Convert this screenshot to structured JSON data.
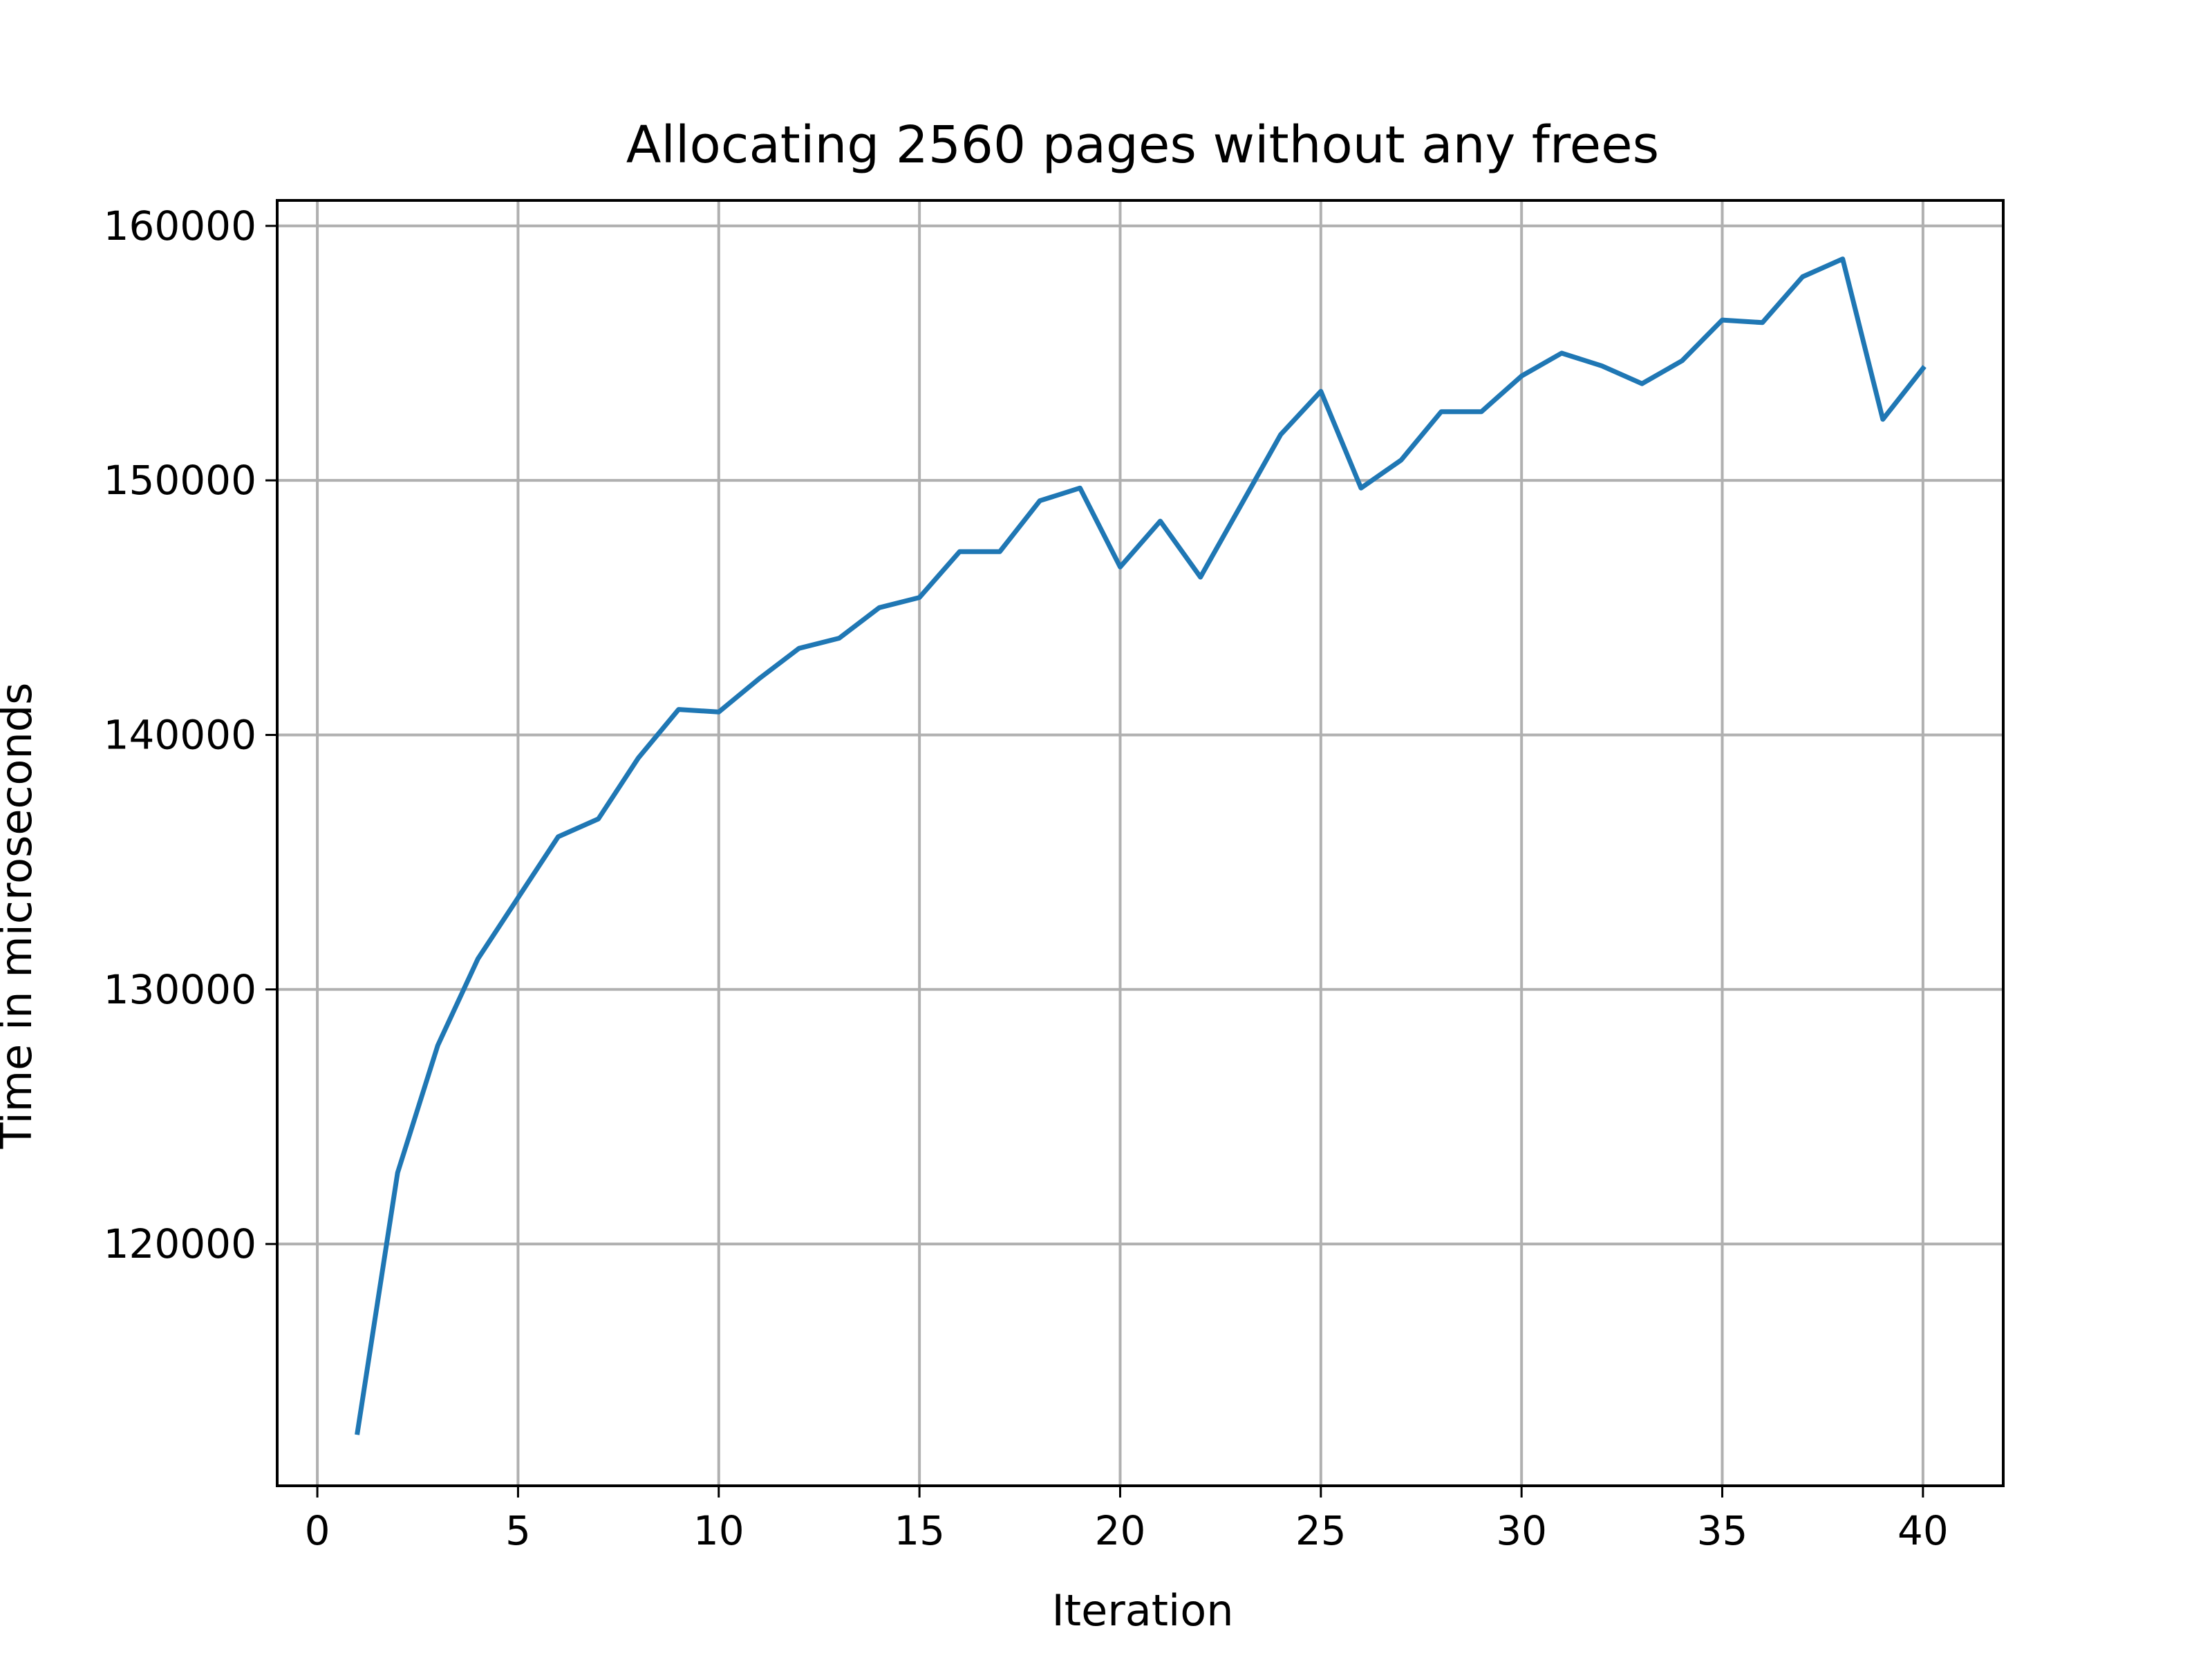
{
  "chart_data": {
    "type": "line",
    "title": "Allocating 2560 pages without any frees",
    "xlabel": "Iteration",
    "ylabel": "Time in microseconds",
    "xlim": [
      -1,
      42
    ],
    "ylim": [
      110500,
      161000
    ],
    "xticks": [
      0,
      5,
      10,
      15,
      20,
      25,
      30,
      35,
      40
    ],
    "yticks": [
      120000,
      130000,
      140000,
      150000,
      160000
    ],
    "xtick_labels": [
      "0",
      "5",
      "10",
      "15",
      "20",
      "25",
      "30",
      "35",
      "40"
    ],
    "ytick_labels": [
      "120000",
      "130000",
      "140000",
      "150000",
      "160000"
    ],
    "grid": true,
    "legend": "none",
    "series": [
      {
        "color": "#1f77b4",
        "x": [
          1,
          2,
          3,
          4,
          5,
          6,
          7,
          8,
          9,
          10,
          11,
          12,
          13,
          14,
          15,
          16,
          17,
          18,
          19,
          20,
          21,
          22,
          23,
          24,
          25,
          26,
          27,
          28,
          29,
          30,
          31,
          32,
          33,
          34,
          35,
          36,
          37,
          38,
          39,
          40
        ],
        "values": [
          112600,
          122800,
          127800,
          131200,
          133600,
          136000,
          136700,
          139100,
          141000,
          140900,
          142200,
          143400,
          143800,
          145000,
          145400,
          147200,
          147200,
          149200,
          149700,
          146600,
          148400,
          146200,
          149000,
          151800,
          153500,
          149700,
          150800,
          152700,
          152700,
          154100,
          155000,
          154500,
          153800,
          154700,
          156300,
          156200,
          158000,
          158700,
          152400,
          154400
        ]
      }
    ]
  }
}
